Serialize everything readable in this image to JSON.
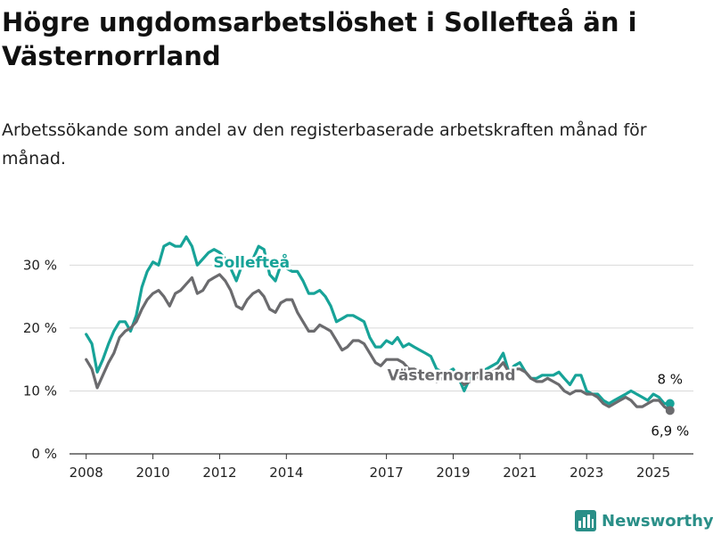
{
  "title": "Högre ungdomsarbetslöshet i Sollefteå än i Västernorrland",
  "subtitle": "Arbetssökande som andel av den registerbaserade arbetskraften månad för månad.",
  "brand": {
    "name": "Newsworthy",
    "icon": "bar-chart-logo-icon"
  },
  "colors": {
    "teal": "#17a398",
    "gray": "#6b6b6e",
    "grid": "#d9d9d9",
    "brand": "#2a8f88"
  },
  "chart_data": {
    "type": "line",
    "x_unit": "year (decimal)",
    "xlim": [
      2007.5,
      2026.2
    ],
    "ylim": [
      0,
      36
    ],
    "x_ticks": [
      2008,
      2010,
      2012,
      2014,
      2017,
      2019,
      2021,
      2023,
      2025
    ],
    "x_tick_labels": [
      "2008",
      "2010",
      "2012",
      "2014",
      "2017",
      "2019",
      "2021",
      "2023",
      "2025"
    ],
    "y_ticks": [
      0,
      10,
      20,
      30
    ],
    "y_tick_labels": [
      "0 %",
      "10 %",
      "20 %",
      "30 %"
    ],
    "grid": true,
    "series": [
      {
        "name": "Sollefteå",
        "color": "#17a398",
        "end_label": "8 %",
        "points": [
          [
            2008.0,
            19.0
          ],
          [
            2008.17,
            17.5
          ],
          [
            2008.33,
            13.0
          ],
          [
            2008.5,
            15.0
          ],
          [
            2008.67,
            17.5
          ],
          [
            2008.83,
            19.5
          ],
          [
            2009.0,
            21.0
          ],
          [
            2009.17,
            21.0
          ],
          [
            2009.33,
            19.5
          ],
          [
            2009.5,
            22.0
          ],
          [
            2009.67,
            26.5
          ],
          [
            2009.83,
            29.0
          ],
          [
            2010.0,
            30.5
          ],
          [
            2010.17,
            30.0
          ],
          [
            2010.33,
            33.0
          ],
          [
            2010.5,
            33.5
          ],
          [
            2010.67,
            33.0
          ],
          [
            2010.83,
            33.0
          ],
          [
            2011.0,
            34.5
          ],
          [
            2011.17,
            33.0
          ],
          [
            2011.33,
            30.0
          ],
          [
            2011.5,
            31.0
          ],
          [
            2011.67,
            32.0
          ],
          [
            2011.83,
            32.5
          ],
          [
            2012.0,
            32.0
          ],
          [
            2012.17,
            31.0
          ],
          [
            2012.33,
            29.5
          ],
          [
            2012.5,
            27.5
          ],
          [
            2012.67,
            30.0
          ],
          [
            2012.83,
            30.0
          ],
          [
            2013.0,
            31.0
          ],
          [
            2013.17,
            33.0
          ],
          [
            2013.33,
            32.5
          ],
          [
            2013.5,
            28.5
          ],
          [
            2013.67,
            27.5
          ],
          [
            2013.83,
            30.0
          ],
          [
            2014.0,
            29.5
          ],
          [
            2014.17,
            29.0
          ],
          [
            2014.33,
            29.0
          ],
          [
            2014.5,
            27.5
          ],
          [
            2014.67,
            25.5
          ],
          [
            2014.83,
            25.5
          ],
          [
            2015.0,
            26.0
          ],
          [
            2015.17,
            25.0
          ],
          [
            2015.33,
            23.5
          ],
          [
            2015.5,
            21.0
          ],
          [
            2015.67,
            21.5
          ],
          [
            2015.83,
            22.0
          ],
          [
            2016.0,
            22.0
          ],
          [
            2016.17,
            21.5
          ],
          [
            2016.33,
            21.0
          ],
          [
            2016.5,
            18.5
          ],
          [
            2016.67,
            17.0
          ],
          [
            2016.83,
            17.0
          ],
          [
            2017.0,
            18.0
          ],
          [
            2017.17,
            17.5
          ],
          [
            2017.33,
            18.5
          ],
          [
            2017.5,
            17.0
          ],
          [
            2017.67,
            17.5
          ],
          [
            2017.83,
            17.0
          ],
          [
            2018.0,
            16.5
          ],
          [
            2018.17,
            16.0
          ],
          [
            2018.33,
            15.5
          ],
          [
            2018.5,
            13.5
          ],
          [
            2018.67,
            13.0
          ],
          [
            2018.83,
            13.0
          ],
          [
            2019.0,
            13.5
          ],
          [
            2019.17,
            12.0
          ],
          [
            2019.33,
            10.0
          ],
          [
            2019.5,
            12.0
          ],
          [
            2019.67,
            12.5
          ],
          [
            2019.83,
            13.0
          ],
          [
            2020.0,
            13.5
          ],
          [
            2020.17,
            14.0
          ],
          [
            2020.33,
            14.5
          ],
          [
            2020.5,
            16.0
          ],
          [
            2020.67,
            13.0
          ],
          [
            2020.83,
            14.0
          ],
          [
            2021.0,
            14.5
          ],
          [
            2021.17,
            13.0
          ],
          [
            2021.33,
            12.0
          ],
          [
            2021.5,
            12.0
          ],
          [
            2021.67,
            12.5
          ],
          [
            2021.83,
            12.5
          ],
          [
            2022.0,
            12.5
          ],
          [
            2022.17,
            13.0
          ],
          [
            2022.33,
            12.0
          ],
          [
            2022.5,
            11.0
          ],
          [
            2022.67,
            12.5
          ],
          [
            2022.83,
            12.5
          ],
          [
            2023.0,
            10.0
          ],
          [
            2023.17,
            9.5
          ],
          [
            2023.33,
            9.5
          ],
          [
            2023.5,
            8.5
          ],
          [
            2023.67,
            8.0
          ],
          [
            2023.83,
            8.5
          ],
          [
            2024.0,
            9.0
          ],
          [
            2024.17,
            9.5
          ],
          [
            2024.33,
            10.0
          ],
          [
            2024.5,
            9.5
          ],
          [
            2024.67,
            9.0
          ],
          [
            2024.83,
            8.5
          ],
          [
            2025.0,
            9.5
          ],
          [
            2025.17,
            9.0
          ],
          [
            2025.33,
            8.0
          ],
          [
            2025.5,
            8.0
          ]
        ]
      },
      {
        "name": "Västernorrland",
        "color": "#6b6b6e",
        "end_label": "6,9 %",
        "points": [
          [
            2008.0,
            15.0
          ],
          [
            2008.17,
            13.5
          ],
          [
            2008.33,
            10.5
          ],
          [
            2008.5,
            12.5
          ],
          [
            2008.67,
            14.5
          ],
          [
            2008.83,
            16.0
          ],
          [
            2009.0,
            18.5
          ],
          [
            2009.17,
            19.5
          ],
          [
            2009.33,
            20.0
          ],
          [
            2009.5,
            21.0
          ],
          [
            2009.67,
            23.0
          ],
          [
            2009.83,
            24.5
          ],
          [
            2010.0,
            25.5
          ],
          [
            2010.17,
            26.0
          ],
          [
            2010.33,
            25.0
          ],
          [
            2010.5,
            23.5
          ],
          [
            2010.67,
            25.5
          ],
          [
            2010.83,
            26.0
          ],
          [
            2011.0,
            27.0
          ],
          [
            2011.17,
            28.0
          ],
          [
            2011.33,
            25.5
          ],
          [
            2011.5,
            26.0
          ],
          [
            2011.67,
            27.5
          ],
          [
            2011.83,
            28.0
          ],
          [
            2012.0,
            28.5
          ],
          [
            2012.17,
            27.5
          ],
          [
            2012.33,
            26.0
          ],
          [
            2012.5,
            23.5
          ],
          [
            2012.67,
            23.0
          ],
          [
            2012.83,
            24.5
          ],
          [
            2013.0,
            25.5
          ],
          [
            2013.17,
            26.0
          ],
          [
            2013.33,
            25.0
          ],
          [
            2013.5,
            23.0
          ],
          [
            2013.67,
            22.5
          ],
          [
            2013.83,
            24.0
          ],
          [
            2014.0,
            24.5
          ],
          [
            2014.17,
            24.5
          ],
          [
            2014.33,
            22.5
          ],
          [
            2014.5,
            21.0
          ],
          [
            2014.67,
            19.5
          ],
          [
            2014.83,
            19.5
          ],
          [
            2015.0,
            20.5
          ],
          [
            2015.17,
            20.0
          ],
          [
            2015.33,
            19.5
          ],
          [
            2015.5,
            18.0
          ],
          [
            2015.67,
            16.5
          ],
          [
            2015.83,
            17.0
          ],
          [
            2016.0,
            18.0
          ],
          [
            2016.17,
            18.0
          ],
          [
            2016.33,
            17.5
          ],
          [
            2016.5,
            16.0
          ],
          [
            2016.67,
            14.5
          ],
          [
            2016.83,
            14.0
          ],
          [
            2017.0,
            15.0
          ],
          [
            2017.17,
            15.0
          ],
          [
            2017.33,
            15.0
          ],
          [
            2017.5,
            14.5
          ],
          [
            2017.67,
            13.5
          ],
          [
            2017.83,
            13.5
          ],
          [
            2018.0,
            13.0
          ],
          [
            2018.17,
            12.5
          ],
          [
            2018.33,
            12.0
          ],
          [
            2018.5,
            11.5
          ],
          [
            2018.67,
            12.0
          ],
          [
            2018.83,
            12.5
          ],
          [
            2019.0,
            13.0
          ],
          [
            2019.17,
            12.0
          ],
          [
            2019.33,
            11.0
          ],
          [
            2019.5,
            11.5
          ],
          [
            2019.67,
            12.0
          ],
          [
            2019.83,
            12.5
          ],
          [
            2020.0,
            12.5
          ],
          [
            2020.17,
            13.0
          ],
          [
            2020.33,
            13.5
          ],
          [
            2020.5,
            14.5
          ],
          [
            2020.67,
            13.0
          ],
          [
            2020.83,
            13.5
          ],
          [
            2021.0,
            13.5
          ],
          [
            2021.17,
            13.0
          ],
          [
            2021.33,
            12.0
          ],
          [
            2021.5,
            11.5
          ],
          [
            2021.67,
            11.5
          ],
          [
            2021.83,
            12.0
          ],
          [
            2022.0,
            11.5
          ],
          [
            2022.17,
            11.0
          ],
          [
            2022.33,
            10.0
          ],
          [
            2022.5,
            9.5
          ],
          [
            2022.67,
            10.0
          ],
          [
            2022.83,
            10.0
          ],
          [
            2023.0,
            9.5
          ],
          [
            2023.17,
            9.5
          ],
          [
            2023.33,
            9.0
          ],
          [
            2023.5,
            8.0
          ],
          [
            2023.67,
            7.5
          ],
          [
            2023.83,
            8.0
          ],
          [
            2024.0,
            8.5
          ],
          [
            2024.17,
            9.0
          ],
          [
            2024.33,
            8.5
          ],
          [
            2024.5,
            7.5
          ],
          [
            2024.67,
            7.5
          ],
          [
            2024.83,
            8.0
          ],
          [
            2025.0,
            8.5
          ],
          [
            2025.17,
            8.5
          ],
          [
            2025.33,
            7.5
          ],
          [
            2025.5,
            6.9
          ]
        ]
      }
    ]
  }
}
